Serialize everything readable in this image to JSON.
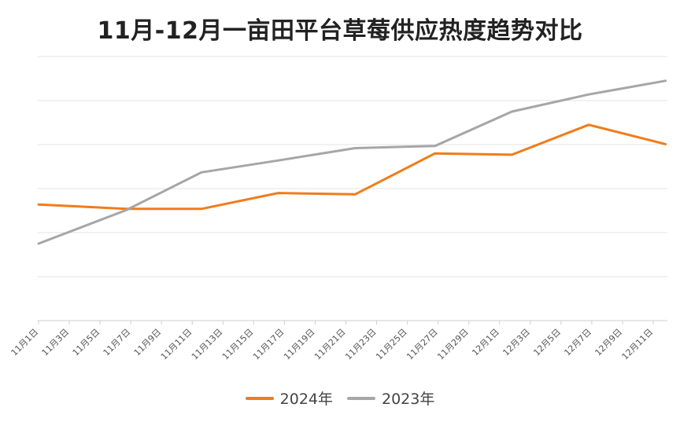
{
  "chart_data": {
    "type": "line",
    "title": "11月-12月一亩田平台草莓供应热度趋势对比",
    "xlabel": "",
    "ylabel": "",
    "grid": true,
    "y_axis_labels_visible": false,
    "ylim": [
      0,
      6
    ],
    "x_ticks": [
      "11月1日",
      "11月3日",
      "11月5日",
      "11月7日",
      "11月9日",
      "11月11日",
      "11月13日",
      "11月15日",
      "11月17日",
      "11月19日",
      "11月21日",
      "11月23日",
      "11月25日",
      "11月27日",
      "11月29日",
      "12月1日",
      "12月3日",
      "12月5日",
      "12月7日",
      "12月9日",
      "12月11日"
    ],
    "series": [
      {
        "name": "2024年",
        "color": "#F07C1A",
        "x": [
          0,
          2.85,
          5.3,
          7.8,
          10.3,
          12.9,
          15.4,
          17.9,
          20.4
        ],
        "values": [
          2.64,
          2.54,
          2.54,
          2.9,
          2.87,
          3.8,
          3.77,
          4.45,
          4.01
        ]
      },
      {
        "name": "2023年",
        "color": "#A6A6A6",
        "x": [
          0,
          2.85,
          5.3,
          7.8,
          10.3,
          12.9,
          15.4,
          17.9,
          20.4
        ],
        "values": [
          1.75,
          2.51,
          3.37,
          3.64,
          3.92,
          3.97,
          4.75,
          5.14,
          5.45
        ]
      }
    ],
    "legend_position": "bottom"
  }
}
